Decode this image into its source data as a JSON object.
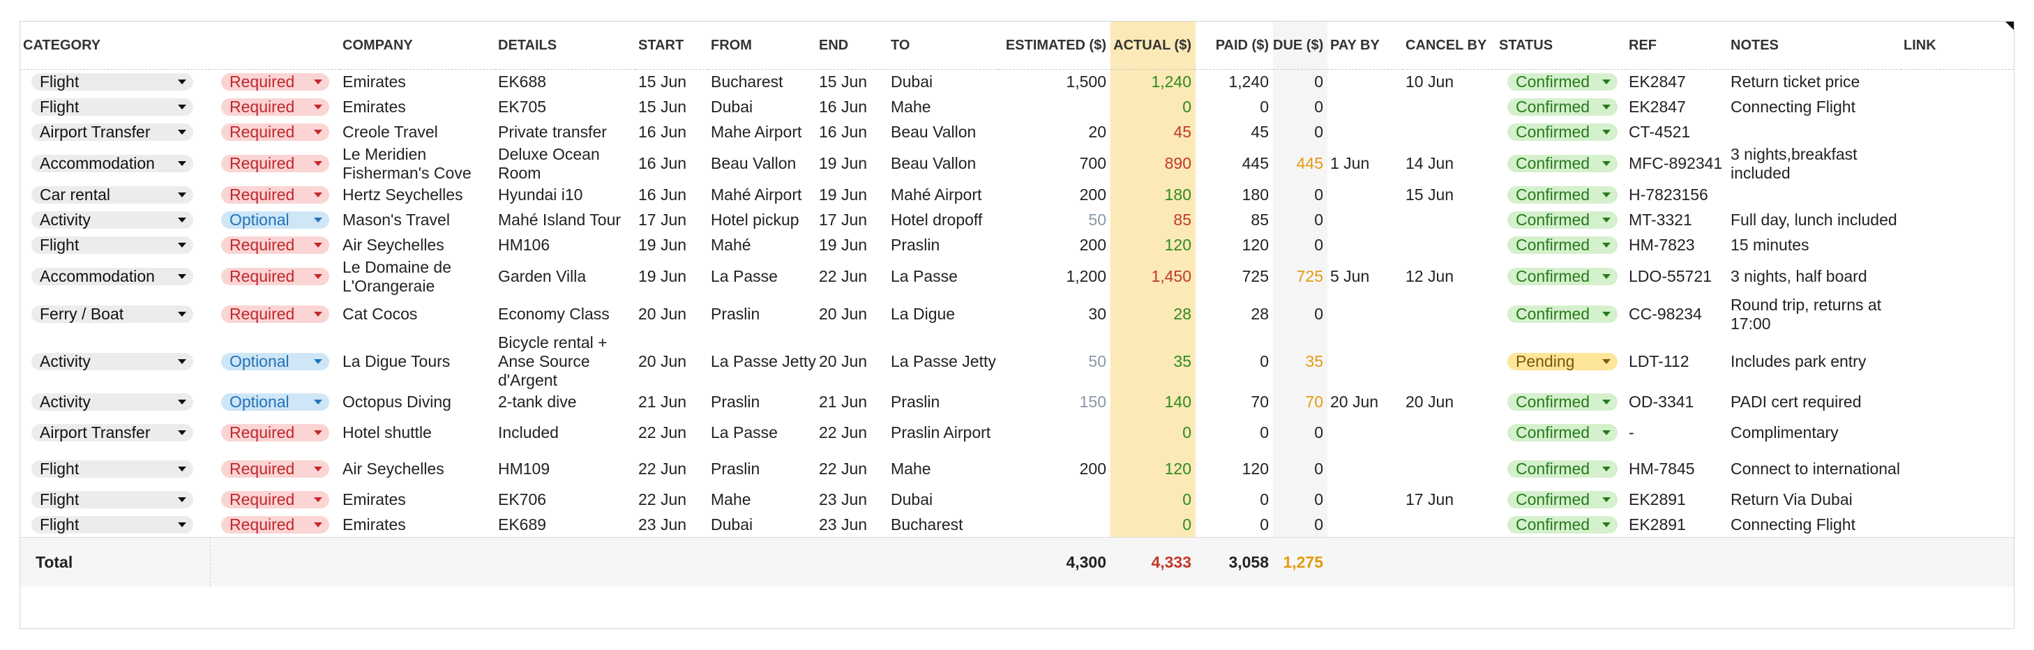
{
  "columns": {
    "category": "CATEGORY",
    "company": "COMPANY",
    "details": "DETAILS",
    "start": "START",
    "from": "FROM",
    "end": "END",
    "to": "TO",
    "estimated": "ESTIMATED ($)",
    "actual": "ACTUAL ($)",
    "paid": "PAID ($)",
    "due": "DUE ($)",
    "pay_by": "PAY BY",
    "cancel_by": "CANCEL BY",
    "status": "STATUS",
    "ref": "REF",
    "notes": "NOTES",
    "link": "LINK"
  },
  "rows": [
    {
      "category": "Flight",
      "req": "Required",
      "company": "Emirates",
      "details": "EK688",
      "start": "15 Jun",
      "from": "Bucharest",
      "end": "15 Jun",
      "to": "Dubai",
      "estimated": "1,500",
      "actual": "1,240",
      "paid": "1,240",
      "due": "0",
      "pay_by": "",
      "cancel_by": "10 Jun",
      "status": "Confirmed",
      "ref": "EK2847",
      "notes": "Return ticket price",
      "link": ""
    },
    {
      "category": "Flight",
      "req": "Required",
      "company": "Emirates",
      "details": "EK705",
      "start": "15 Jun",
      "from": "Dubai",
      "end": "16 Jun",
      "to": "Mahe",
      "estimated": "",
      "actual": "0",
      "paid": "0",
      "due": "0",
      "pay_by": "",
      "cancel_by": "",
      "status": "Confirmed",
      "ref": "EK2847",
      "notes": "Connecting Flight",
      "link": ""
    },
    {
      "category": "Airport Transfer",
      "req": "Required",
      "company": "Creole Travel",
      "details": "Private transfer",
      "start": "16 Jun",
      "from": "Mahe Airport",
      "end": "16 Jun",
      "to": "Beau Vallon",
      "estimated": "20",
      "actual": "45",
      "paid": "45",
      "due": "0",
      "pay_by": "",
      "cancel_by": "",
      "status": "Confirmed",
      "ref": "CT-4521",
      "notes": "",
      "link": ""
    },
    {
      "category": "Accommodation",
      "req": "Required",
      "company": "Le Meridien Fisherman's Cove",
      "details": "Deluxe Ocean Room",
      "start": "16 Jun",
      "from": "Beau Vallon",
      "end": "19 Jun",
      "to": "Beau Vallon",
      "estimated": "700",
      "actual": "890",
      "paid": "445",
      "due": "445",
      "pay_by": "1 Jun",
      "cancel_by": "14 Jun",
      "status": "Confirmed",
      "ref": "MFC-892341",
      "notes": "3 nights,breakfast included",
      "link": ""
    },
    {
      "category": "Car rental",
      "req": "Required",
      "company": "Hertz Seychelles",
      "details": "Hyundai i10",
      "start": "16 Jun",
      "from": "Mahé Airport",
      "end": "19 Jun",
      "to": "Mahé Airport",
      "estimated": "200",
      "actual": "180",
      "paid": "180",
      "due": "0",
      "pay_by": "",
      "cancel_by": "15 Jun",
      "status": "Confirmed",
      "ref": "H-7823156",
      "notes": "",
      "link": ""
    },
    {
      "category": "Activity",
      "req": "Optional",
      "company": "Mason's Travel",
      "details": "Mahé Island Tour",
      "start": "17 Jun",
      "from": "Hotel pickup",
      "end": "17 Jun",
      "to": "Hotel dropoff",
      "estimated": "50",
      "actual": "85",
      "paid": "85",
      "due": "0",
      "pay_by": "",
      "cancel_by": "",
      "status": "Confirmed",
      "ref": "MT-3321",
      "notes": "Full day, lunch included",
      "link": ""
    },
    {
      "category": "Flight",
      "req": "Required",
      "company": "Air Seychelles",
      "details": "HM106",
      "start": "19 Jun",
      "from": "Mahé",
      "end": "19 Jun",
      "to": "Praslin",
      "estimated": "200",
      "actual": "120",
      "paid": "120",
      "due": "0",
      "pay_by": "",
      "cancel_by": "",
      "status": "Confirmed",
      "ref": "HM-7823",
      "notes": "15 minutes",
      "link": ""
    },
    {
      "category": "Accommodation",
      "req": "Required",
      "company": "Le Domaine de L'Orangeraie",
      "details": "Garden Villa",
      "start": "19 Jun",
      "from": "La Passe",
      "end": "22 Jun",
      "to": "La Passe",
      "estimated": "1,200",
      "actual": "1,450",
      "paid": "725",
      "due": "725",
      "pay_by": "5 Jun",
      "cancel_by": "12 Jun",
      "status": "Confirmed",
      "ref": "LDO-55721",
      "notes": "3 nights, half board",
      "link": ""
    },
    {
      "category": "Ferry / Boat",
      "req": "Required",
      "company": "Cat Cocos",
      "details": "Economy Class",
      "start": "20 Jun",
      "from": "Praslin",
      "end": "20 Jun",
      "to": "La Digue",
      "estimated": "30",
      "actual": "28",
      "paid": "28",
      "due": "0",
      "pay_by": "",
      "cancel_by": "",
      "status": "Confirmed",
      "ref": "CC-98234",
      "notes": "Round trip, returns at 17:00",
      "link": ""
    },
    {
      "category": "Activity",
      "req": "Optional",
      "company": "La Digue Tours",
      "details": "Bicycle rental + Anse Source d'Argent",
      "start": "20 Jun",
      "from": "La Passe Jetty",
      "end": "20 Jun",
      "to": "La Passe Jetty",
      "estimated": "50",
      "actual": "35",
      "paid": "0",
      "due": "35",
      "pay_by": "",
      "cancel_by": "",
      "status": "Pending",
      "ref": "LDT-112",
      "notes": "Includes park entry",
      "link": ""
    },
    {
      "category": "Activity",
      "req": "Optional",
      "company": "Octopus Diving",
      "details": "2-tank dive",
      "start": "21 Jun",
      "from": "Praslin",
      "end": "21 Jun",
      "to": "Praslin",
      "estimated": "150",
      "actual": "140",
      "paid": "70",
      "due": "70",
      "pay_by": "20 Jun",
      "cancel_by": "20 Jun",
      "status": "Confirmed",
      "ref": "OD-3341",
      "notes": "PADI cert required",
      "link": ""
    },
    {
      "category": "Airport Transfer",
      "req": "Required",
      "company": "Hotel shuttle",
      "details": "Included",
      "start": "22 Jun",
      "from": "La Passe",
      "end": "22 Jun",
      "to": "Praslin Airport",
      "estimated": "",
      "actual": "0",
      "paid": "0",
      "due": "0",
      "pay_by": "",
      "cancel_by": "",
      "status": "Confirmed",
      "ref": "-",
      "notes": "Complimentary",
      "link": ""
    },
    {
      "category": "Flight",
      "req": "Required",
      "company": "Air Seychelles",
      "details": "HM109",
      "start": "22 Jun",
      "from": "Praslin",
      "end": "22 Jun",
      "to": "Mahe",
      "estimated": "200",
      "actual": "120",
      "paid": "120",
      "due": "0",
      "pay_by": "",
      "cancel_by": "",
      "status": "Confirmed",
      "ref": "HM-7845",
      "notes": "Connect to international",
      "link": ""
    },
    {
      "category": "Flight",
      "req": "Required",
      "company": "Emirates",
      "details": "EK706",
      "start": "22 Jun",
      "from": "Mahe",
      "end": "23 Jun",
      "to": "Dubai",
      "estimated": "",
      "actual": "0",
      "paid": "0",
      "due": "0",
      "pay_by": "",
      "cancel_by": "17 Jun",
      "status": "Confirmed",
      "ref": "EK2891",
      "notes": "Return Via Dubai",
      "link": ""
    },
    {
      "category": "Flight",
      "req": "Required",
      "company": "Emirates",
      "details": "EK689",
      "start": "23 Jun",
      "from": "Dubai",
      "end": "23 Jun",
      "to": "Bucharest",
      "estimated": "",
      "actual": "0",
      "paid": "0",
      "due": "0",
      "pay_by": "",
      "cancel_by": "",
      "status": "Confirmed",
      "ref": "EK2891",
      "notes": "Connecting Flight",
      "link": ""
    }
  ],
  "totals": {
    "label": "Total",
    "estimated": "4,300",
    "actual": "4,333",
    "paid": "3,058",
    "due": "1,275"
  },
  "colors": {
    "actual_highlight": "#fbe9b7",
    "required_badge": "#fbd4d4",
    "optional_badge": "#cfe6f7",
    "confirmed_badge": "#d4f0cc",
    "pending_badge": "#fde59a",
    "over_budget": "#c0392b",
    "under_budget": "#2f8a1f",
    "due_amount": "#e39b12"
  }
}
